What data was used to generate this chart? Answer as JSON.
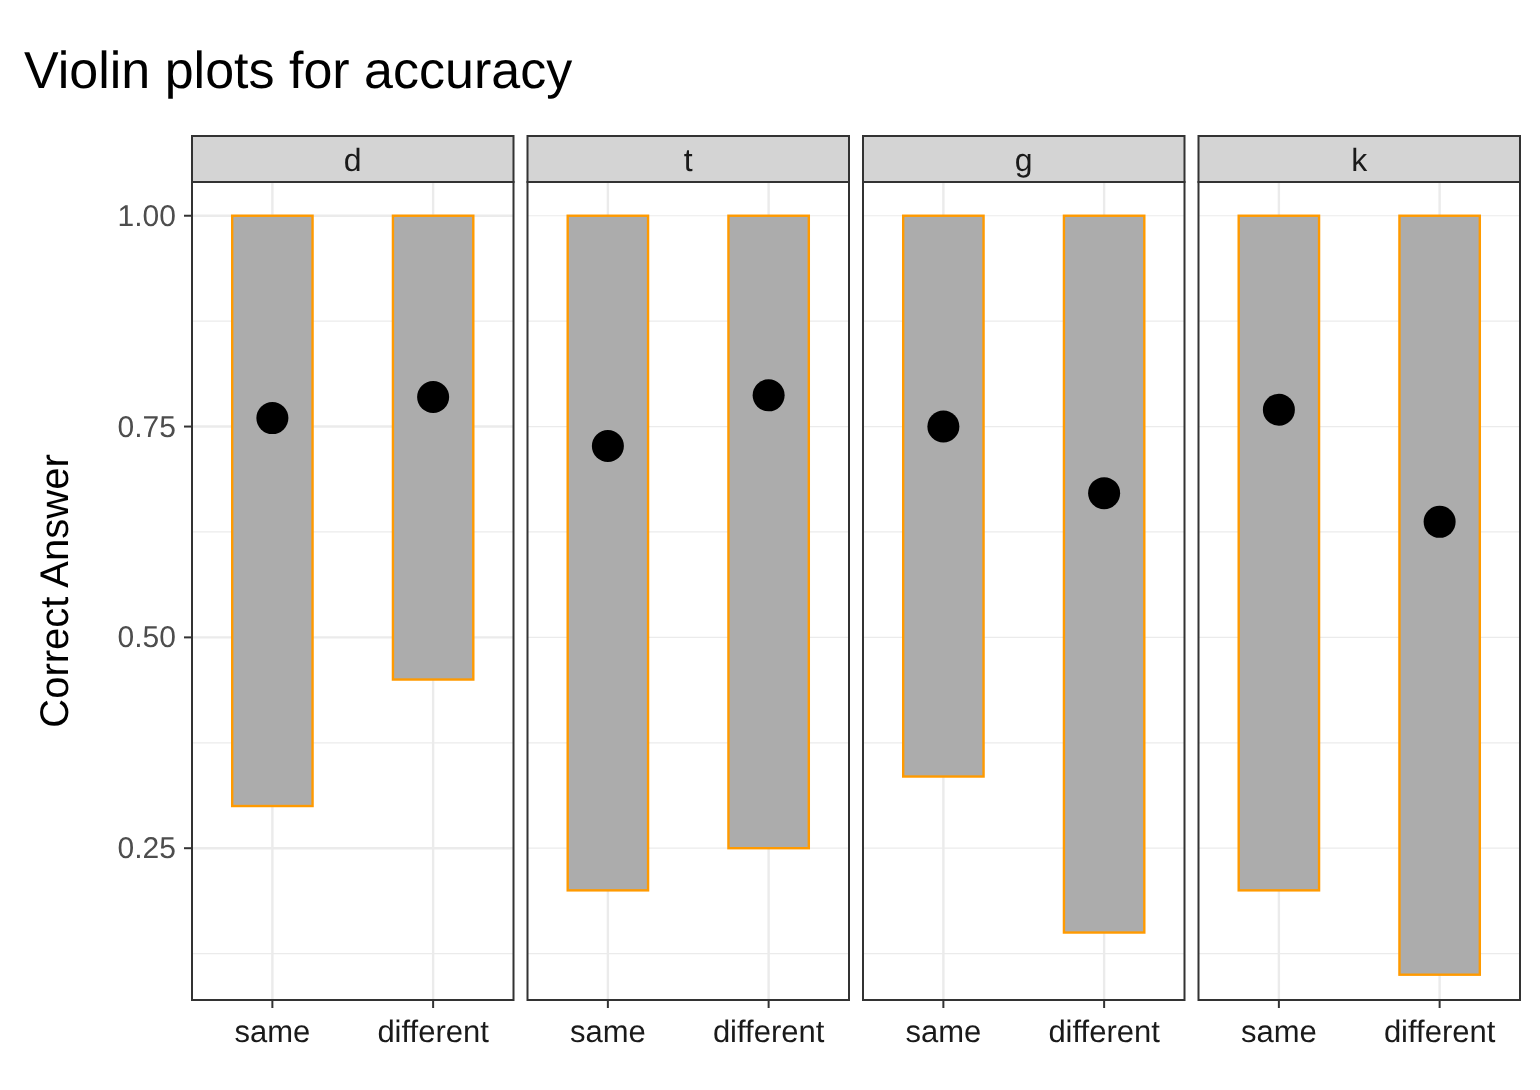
{
  "chart_data": [
    {
      "type": "bar",
      "title": "Violin plots for accuracy",
      "subtitle": "d",
      "ylabel": "Correct Answer",
      "categories": [
        "same",
        "different"
      ],
      "ylim": [
        0.07,
        1.04
      ],
      "yticks": [
        {
          "value": 0.125,
          "label": null
        },
        {
          "value": 0.25,
          "label": "0.25"
        },
        {
          "value": 0.375,
          "label": null
        },
        {
          "value": 0.5,
          "label": "0.50"
        },
        {
          "value": 0.625,
          "label": null
        },
        {
          "value": 0.75,
          "label": "0.75"
        },
        {
          "value": 0.875,
          "label": null
        },
        {
          "value": 1,
          "label": "1.00"
        }
      ],
      "grid": true,
      "series": [
        {
          "color": "#acacac",
          "base": [
            0.3,
            0.45
          ],
          "values": [
            0.7,
            0.55
          ]
        },
        {
          "type": "scatter",
          "color": "#000000",
          "values": [
            0.76,
            0.785
          ]
        }
      ]
    },
    {
      "type": "bar",
      "subtitle": "t",
      "categories": [
        "same",
        "different"
      ],
      "ylim": [
        0.07,
        1.04
      ],
      "yticks": [
        {
          "value": 0.125,
          "label": null
        },
        {
          "value": 0.25,
          "label": null
        },
        {
          "value": 0.375,
          "label": null
        },
        {
          "value": 0.5,
          "label": null
        },
        {
          "value": 0.625,
          "label": null
        },
        {
          "value": 0.75,
          "label": null
        },
        {
          "value": 0.875,
          "label": null
        },
        {
          "value": 1,
          "label": null
        }
      ],
      "grid": true,
      "tick_labels": "x",
      "series": [
        {
          "color": "#acacac",
          "base": [
            0.2,
            0.25
          ],
          "values": [
            0.8,
            0.75
          ]
        },
        {
          "type": "scatter",
          "color": "#000000",
          "values": [
            0.727,
            0.787
          ]
        }
      ]
    },
    {
      "type": "bar",
      "subtitle": "g",
      "categories": [
        "same",
        "different"
      ],
      "ylim": [
        0.07,
        1.04
      ],
      "yticks": [
        {
          "value": 0.125,
          "label": null
        },
        {
          "value": 0.25,
          "label": null
        },
        {
          "value": 0.375,
          "label": null
        },
        {
          "value": 0.5,
          "label": null
        },
        {
          "value": 0.625,
          "label": null
        },
        {
          "value": 0.75,
          "label": null
        },
        {
          "value": 0.875,
          "label": null
        },
        {
          "value": 1,
          "label": null
        }
      ],
      "grid": true,
      "tick_labels": "x",
      "series": [
        {
          "color": "#acacac",
          "base": [
            0.335,
            0.15
          ],
          "values": [
            0.665,
            0.85
          ]
        },
        {
          "type": "scatter",
          "color": "#000000",
          "values": [
            0.75,
            0.671
          ]
        }
      ]
    },
    {
      "type": "bar",
      "subtitle": "k",
      "categories": [
        "same",
        "different"
      ],
      "ylim": [
        0.07,
        1.04
      ],
      "yticks": [
        {
          "value": 0.125,
          "label": null
        },
        {
          "value": 0.25,
          "label": null
        },
        {
          "value": 0.375,
          "label": null
        },
        {
          "value": 0.5,
          "label": null
        },
        {
          "value": 0.625,
          "label": null
        },
        {
          "value": 0.75,
          "label": null
        },
        {
          "value": 0.875,
          "label": null
        },
        {
          "value": 1,
          "label": null
        }
      ],
      "grid": true,
      "tick_labels": "x",
      "series": [
        {
          "color": "#acacac",
          "base": [
            0.2,
            0.1
          ],
          "values": [
            0.8,
            0.9
          ]
        },
        {
          "type": "scatter",
          "color": "#000000",
          "values": [
            0.77,
            0.637
          ]
        }
      ]
    }
  ]
}
